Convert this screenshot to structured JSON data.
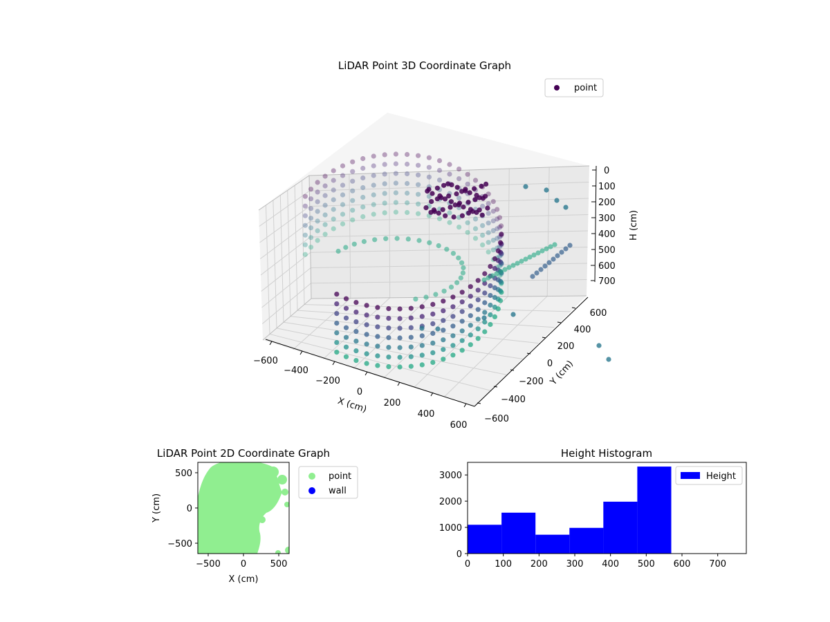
{
  "chart_data": [
    {
      "type": "scatter3d",
      "title": "LiDAR Point 3D Coordinate Graph",
      "xlabel": "X (cm)",
      "ylabel": "Y (cm)",
      "zlabel": "H (cm)",
      "x_ticks": [
        "−600",
        "−400",
        "−200",
        "0",
        "200",
        "400",
        "600"
      ],
      "y_ticks": [
        "−600",
        "−400",
        "−200",
        "0",
        "200",
        "400",
        "600"
      ],
      "z_ticks": [
        "0",
        "100",
        "200",
        "300",
        "400",
        "500",
        "600",
        "700"
      ],
      "xlim": [
        -650,
        650
      ],
      "ylim": [
        -650,
        650
      ],
      "zlim": [
        0,
        760
      ],
      "z_inverted": true,
      "colormap": "viridis",
      "legend": [
        "point"
      ],
      "legend_position": "upper right",
      "grid": true
    },
    {
      "type": "scatter",
      "title": "LiDAR Point 2D Coordinate Graph",
      "xlabel": "X (cm)",
      "ylabel": "Y (cm)",
      "x_ticks": [
        "−500",
        "0",
        "500"
      ],
      "y_ticks": [
        "500",
        "0",
        "−500"
      ],
      "xlim": [
        -650,
        650
      ],
      "ylim": [
        -650,
        650
      ],
      "series": [
        {
          "name": "point",
          "color": "#90ee90"
        },
        {
          "name": "wall",
          "color": "#0000ff"
        }
      ],
      "legend_position": "outside right"
    },
    {
      "type": "bar",
      "title": "Height Histogram",
      "series": [
        {
          "name": "Height",
          "color": "#0000ff"
        }
      ],
      "bin_edges": [
        0,
        95,
        190,
        285,
        380,
        475,
        570
      ],
      "values": [
        1100,
        1560,
        720,
        980,
        1980,
        3320
      ],
      "x_ticks": [
        "0",
        "100",
        "200",
        "300",
        "400",
        "500",
        "600",
        "700"
      ],
      "y_ticks": [
        "0",
        "1000",
        "2000",
        "3000"
      ],
      "xlim": [
        0,
        780
      ],
      "ylim": [
        0,
        3480
      ],
      "legend_position": "upper right"
    }
  ]
}
